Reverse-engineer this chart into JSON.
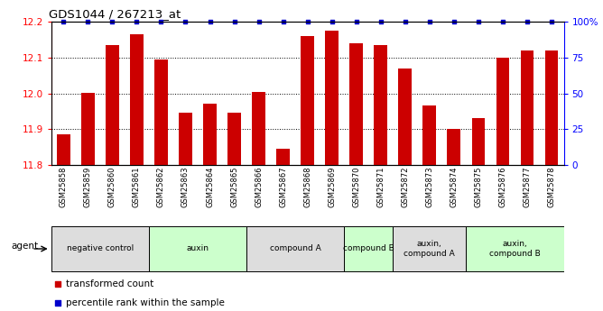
{
  "title": "GDS1044 / 267213_at",
  "samples": [
    "GSM25858",
    "GSM25859",
    "GSM25860",
    "GSM25861",
    "GSM25862",
    "GSM25863",
    "GSM25864",
    "GSM25865",
    "GSM25866",
    "GSM25867",
    "GSM25868",
    "GSM25869",
    "GSM25870",
    "GSM25871",
    "GSM25872",
    "GSM25873",
    "GSM25874",
    "GSM25875",
    "GSM25876",
    "GSM25877",
    "GSM25878"
  ],
  "bar_values": [
    11.885,
    12.002,
    12.135,
    12.165,
    12.095,
    11.945,
    11.97,
    11.945,
    12.003,
    11.845,
    12.16,
    12.175,
    12.14,
    12.135,
    12.07,
    11.965,
    11.9,
    11.93,
    12.1,
    12.12,
    12.12
  ],
  "percentile_values": [
    100,
    100,
    100,
    100,
    100,
    100,
    100,
    100,
    100,
    100,
    100,
    100,
    100,
    100,
    100,
    100,
    100,
    100,
    100,
    100,
    100
  ],
  "ylim_left": [
    11.8,
    12.2
  ],
  "ylim_right": [
    0,
    100
  ],
  "yticks_left": [
    11.8,
    11.9,
    12.0,
    12.1,
    12.2
  ],
  "yticks_right": [
    0,
    25,
    50,
    75,
    100
  ],
  "ytick_labels_right": [
    "0",
    "25",
    "50",
    "75",
    "100%"
  ],
  "bar_color": "#CC0000",
  "dot_color": "#0000CC",
  "groups": [
    {
      "label": "negative control",
      "start": 0,
      "end": 3,
      "color": "#dddddd"
    },
    {
      "label": "auxin",
      "start": 4,
      "end": 7,
      "color": "#ccffcc"
    },
    {
      "label": "compound A",
      "start": 8,
      "end": 11,
      "color": "#dddddd"
    },
    {
      "label": "compound B",
      "start": 12,
      "end": 13,
      "color": "#ccffcc"
    },
    {
      "label": "auxin,\ncompound A",
      "start": 14,
      "end": 16,
      "color": "#dddddd"
    },
    {
      "label": "auxin,\ncompound B",
      "start": 17,
      "end": 20,
      "color": "#ccffcc"
    }
  ],
  "agent_label": "agent",
  "legend_red_label": "transformed count",
  "legend_blue_label": "percentile rank within the sample",
  "bar_color_red": "#CC0000",
  "bar_color_blue": "#0000CC",
  "fig_width": 6.68,
  "fig_height": 3.45,
  "dpi": 100
}
